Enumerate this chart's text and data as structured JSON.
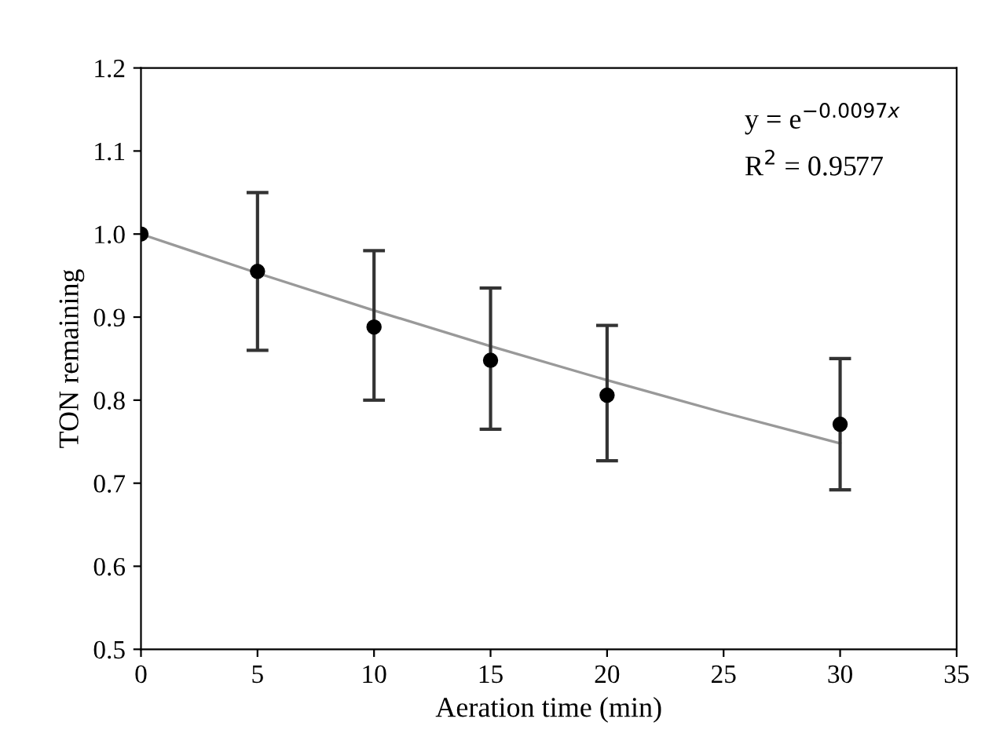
{
  "chart_data": {
    "type": "scatter",
    "xlabel": "Aeration time (min)",
    "ylabel": "TON remaining",
    "xlim": [
      0,
      35
    ],
    "xticks": [
      0,
      5,
      10,
      15,
      20,
      25,
      30,
      35
    ],
    "ylim": [
      0.5,
      1.2
    ],
    "yticks": [
      0.5,
      0.6,
      0.7,
      0.8,
      0.9,
      {
        "value": 1,
        "label": "1.0"
      },
      1.1,
      1.2
    ],
    "grid": false,
    "marker": "circle",
    "series": [
      {
        "color": "#000000",
        "x": [
          0,
          5,
          10,
          15,
          20,
          30
        ],
        "values": [
          1.0,
          0.955,
          0.888,
          0.848,
          0.806,
          0.771
        ],
        "errors": [
          null,
          [
            0.86,
            1.05
          ],
          [
            0.8,
            0.98
          ],
          [
            0.765,
            0.935
          ],
          [
            0.727,
            0.89
          ],
          [
            0.692,
            0.85
          ]
        ]
      },
      {
        "type": "line",
        "color": "#999999",
        "marker": "none",
        "x": [
          0,
          5,
          10,
          15,
          20,
          25,
          30
        ],
        "values": [
          1.0,
          0.953,
          0.908,
          0.865,
          0.824,
          0.785,
          0.748
        ]
      }
    ],
    "annotations": [
      "y = e$^{−0.0097x}$",
      "R$^{2}$ = 0.9577"
    ]
  }
}
